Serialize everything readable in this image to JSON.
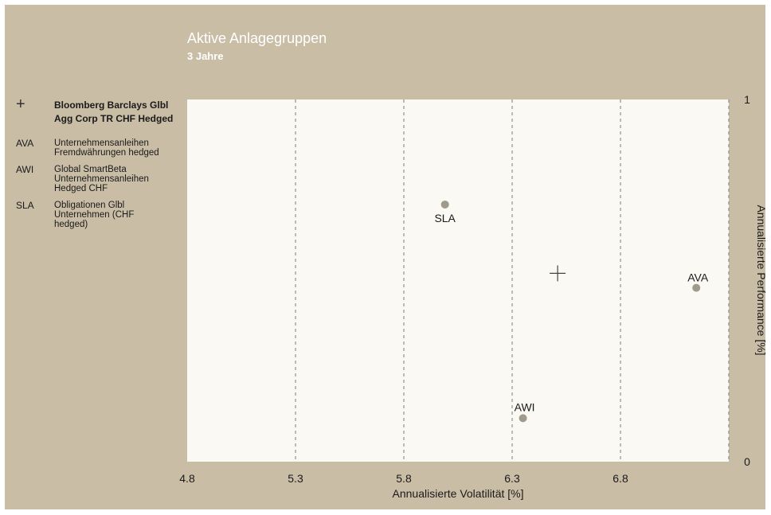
{
  "chart_data": {
    "type": "scatter",
    "title": "Aktive Anlagegruppen",
    "subtitle": "3 Jahre",
    "xlabel": "Annualisierte Volatilität [%]",
    "ylabel": "Annualisierte Performance [%]",
    "xlim": [
      4.8,
      7.3
    ],
    "ylim": [
      0,
      1
    ],
    "xticks": [
      "4.8",
      "5.3",
      "5.8",
      "6.3",
      "6.8"
    ],
    "yticks": [
      "0",
      "1"
    ],
    "grid": "vertical-dashed",
    "points": [
      {
        "label": "SLA",
        "x": 5.99,
        "y": 0.71
      },
      {
        "label": "AVA",
        "x": 7.15,
        "y": 0.48
      },
      {
        "label": "AWI",
        "x": 6.35,
        "y": 0.12
      }
    ],
    "benchmark": {
      "x": 6.51,
      "y": 0.52
    }
  },
  "legend": [
    {
      "key": "+",
      "text": "Bloomberg Barclays Glbl\nAgg Corp TR CHF Hedged",
      "bold": true
    },
    {
      "key": "AVA",
      "text": "Unternehmensanleihen\nFremdwährungen hedged",
      "bold": false
    },
    {
      "key": "AWI",
      "text": "Global SmartBeta\nUnternehmensanleihen\nHedged CHF",
      "bold": false
    },
    {
      "key": "SLA",
      "text": "Obligationen Glbl\nUnternehmen (CHF\nhedged)",
      "bold": false
    }
  ],
  "colors": {
    "panel": "#c9bda6",
    "plot_area": "#fbf9f4",
    "point": "#a09a8c",
    "grid": "#7a7a7a"
  }
}
